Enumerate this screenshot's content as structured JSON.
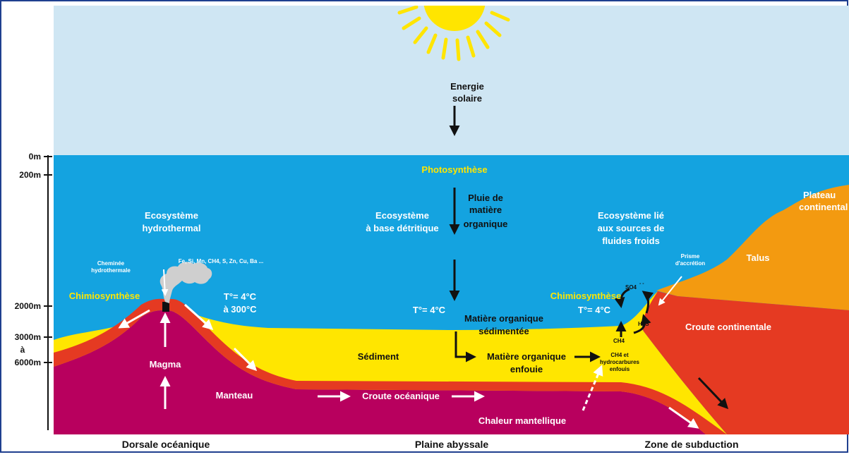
{
  "colors": {
    "sky": "#cfe6f3",
    "ocean": "#14a3e0",
    "sediment": "#ffe600",
    "crust": "#e53a22",
    "mantle": "#b8005e",
    "continent_orange": "#f39a10",
    "border": "#1f3f8f",
    "smoke": "#cfcfcf",
    "sun": "#ffe500"
  },
  "scale": {
    "labels": [
      "0m",
      "200m",
      "2000m",
      "3000m",
      "à",
      "6000m"
    ]
  },
  "sky": {
    "energy_line1": "Energie",
    "energy_line2": "solaire"
  },
  "ocean": {
    "photosynthesis": "Photosynthèse",
    "rain_line1": "Pluie de",
    "rain_line2": "matière",
    "rain_line3": "organique",
    "hydro_eco_line1": "Ecosystème",
    "hydro_eco_line2": "hydrothermal",
    "detritic_eco_line1": "Ecosystème",
    "detritic_eco_line2": "à base détritique",
    "cold_eco_line1": "Ecosystème lié",
    "cold_eco_line2": "aux sources de",
    "cold_eco_line3": "fluides froids",
    "chimney_line1": "Cheminée",
    "chimney_line2": "hydrothermale",
    "elements": "Fe, Si, Mn, CH4, S, Zn, Cu, Ba ...",
    "chemo_left": "Chimiosynthèse",
    "temp_hydro_line1": "T°= 4°C",
    "temp_hydro_line2": "à 300°C",
    "temp_abyss": "T°= 4°C",
    "sedimented_line1": "Matière organique",
    "sedimented_line2": "sédimentée",
    "prism_line1": "Prisme",
    "prism_line2": "d'accrétion",
    "chemo_right": "Chimiosynthèse",
    "temp_cold": "T°= 4°C",
    "so4": "SO4",
    "so4_charge": "- -",
    "h2s": "H2S",
    "ch4": "CH4"
  },
  "ground": {
    "sediment": "Sédiment",
    "buried_line1": "Matière organique",
    "buried_line2": "enfouie",
    "hydrocarbons_line1": "CH4 et",
    "hydrocarbons_line2": "hydrocarbures",
    "hydrocarbons_line3": "enfouis",
    "magma": "Magma",
    "mantle": "Manteau",
    "oceanic_crust": "Croute océanique",
    "mantle_heat": "Chaleur mantellique",
    "continental_crust": "Croute continentale",
    "talus": "Talus",
    "plateau_line1": "Plateau",
    "plateau_line2": "continental"
  },
  "bottom": {
    "ridge": "Dorsale océanique",
    "plain": "Plaine abyssale",
    "subduction": "Zone de subduction"
  }
}
